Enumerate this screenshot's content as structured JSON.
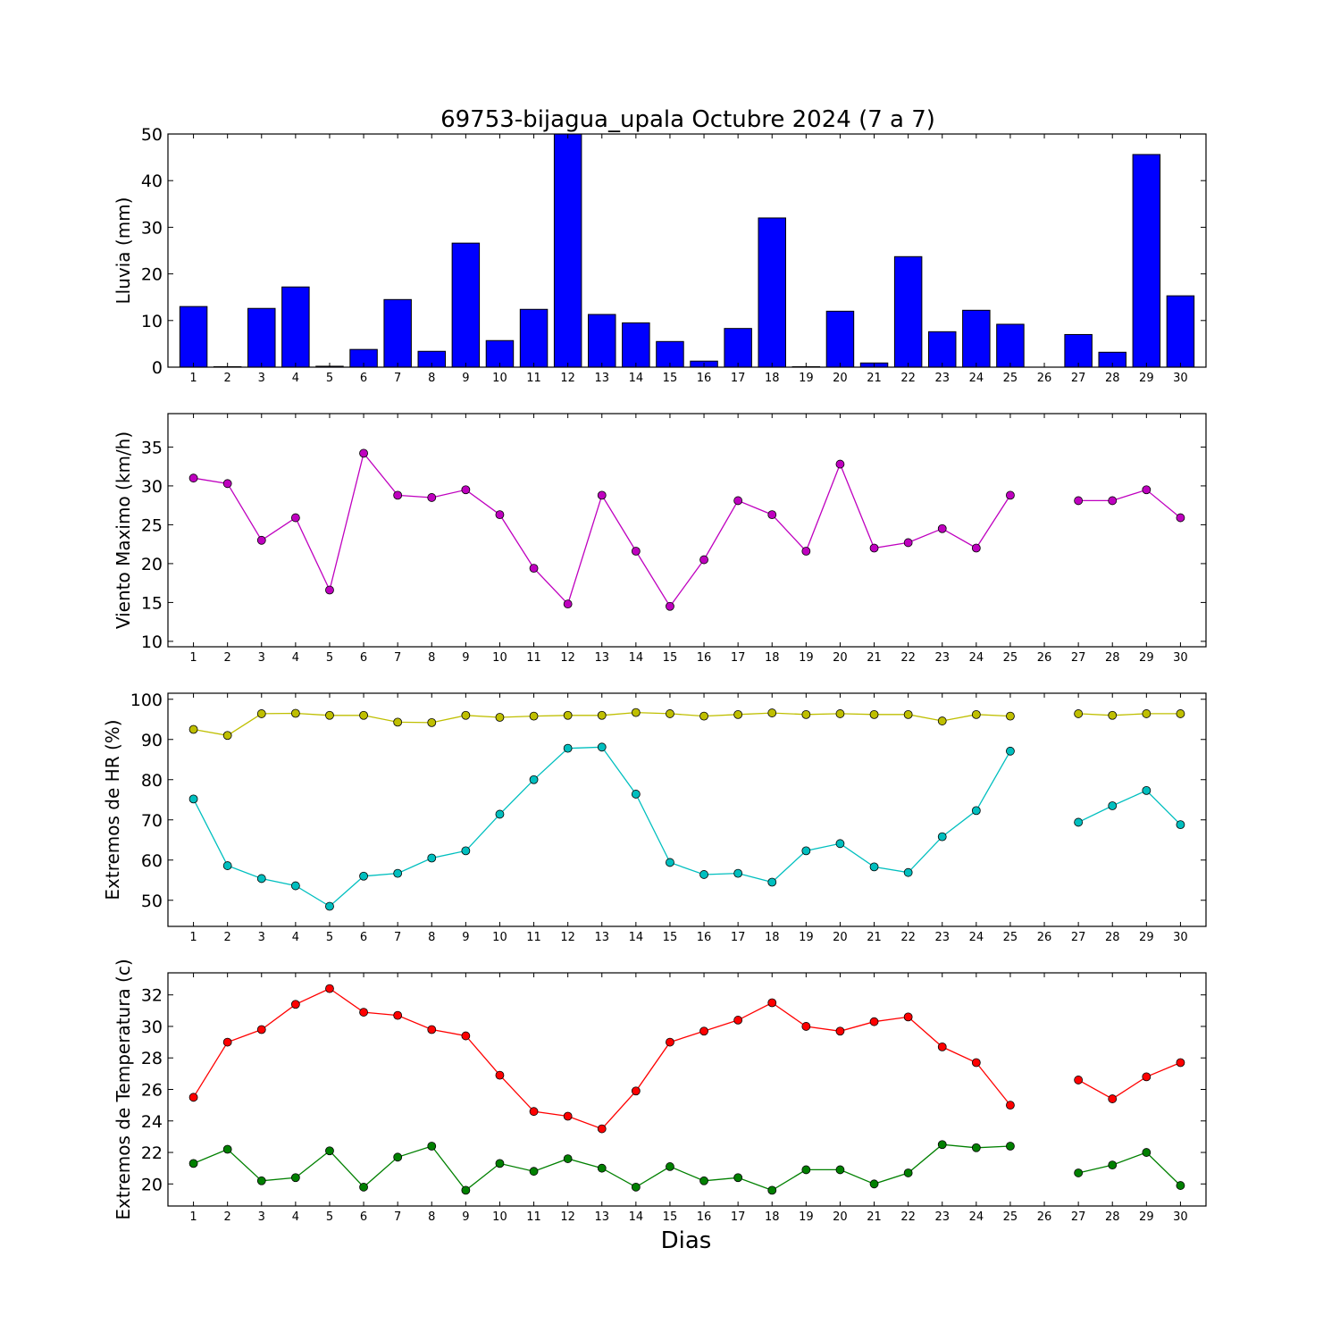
{
  "title": "69753-bijagua_upala Octubre 2024  (7 a 7)",
  "xlabel": "Dias",
  "days": [
    1,
    2,
    3,
    4,
    5,
    6,
    7,
    8,
    9,
    10,
    11,
    12,
    13,
    14,
    15,
    16,
    17,
    18,
    19,
    20,
    21,
    22,
    23,
    24,
    25,
    26,
    27,
    28,
    29,
    30
  ],
  "chart_data": [
    {
      "type": "bar",
      "ylabel": "Lluvia (mm)",
      "ylim": [
        0,
        50
      ],
      "yticks": [
        0,
        10,
        20,
        30,
        40,
        50
      ],
      "series": [
        {
          "color": "#0000ff",
          "values": [
            13.0,
            0.1,
            12.6,
            17.2,
            0.2,
            3.8,
            14.5,
            3.4,
            26.6,
            5.7,
            12.4,
            50,
            11.3,
            9.5,
            5.5,
            1.3,
            8.3,
            32.0,
            0.1,
            12.0,
            0.9,
            23.7,
            7.6,
            12.2,
            9.2,
            0,
            7.0,
            3.2,
            45.6,
            15.3
          ]
        }
      ]
    },
    {
      "type": "line",
      "ylabel": "Viento Maximo (km/h)",
      "ylim": [
        9.3,
        39.3
      ],
      "yticks": [
        10,
        15,
        20,
        25,
        30,
        35
      ],
      "series": [
        {
          "color": "#bf00bf",
          "values": [
            31.0,
            30.3,
            23.0,
            25.9,
            16.6,
            34.2,
            28.8,
            28.5,
            29.5,
            26.3,
            19.4,
            14.8,
            28.8,
            21.6,
            14.5,
            20.5,
            28.1,
            26.3,
            21.6,
            32.8,
            22.0,
            22.7,
            24.5,
            22.0,
            28.8,
            null,
            28.1,
            28.1,
            29.5,
            25.9
          ]
        }
      ]
    },
    {
      "type": "line",
      "ylabel": "Extremos de HR (%)",
      "ylim": [
        43.5,
        101.5
      ],
      "yticks": [
        50,
        60,
        70,
        80,
        90,
        100
      ],
      "series": [
        {
          "color": "#bfbf00",
          "values": [
            92.5,
            91.0,
            96.4,
            96.5,
            96.0,
            96.0,
            94.3,
            94.2,
            96.0,
            95.5,
            95.8,
            96.0,
            96.0,
            96.7,
            96.4,
            95.8,
            96.2,
            96.6,
            96.2,
            96.4,
            96.2,
            96.2,
            94.6,
            96.2,
            95.8,
            null,
            96.4,
            96.0,
            96.4,
            96.4
          ]
        },
        {
          "color": "#00bfbf",
          "values": [
            75.2,
            58.6,
            55.4,
            53.6,
            48.5,
            56.0,
            56.7,
            60.5,
            62.3,
            71.4,
            80.0,
            87.8,
            88.1,
            76.4,
            59.4,
            56.4,
            56.7,
            54.5,
            62.3,
            64.1,
            58.3,
            56.9,
            65.8,
            72.3,
            87.1,
            null,
            69.4,
            73.5,
            77.3,
            68.8
          ]
        }
      ]
    },
    {
      "type": "line",
      "ylabel": "Extremos de Temperatura (c)",
      "ylim": [
        18.6,
        33.4
      ],
      "yticks": [
        20,
        22,
        24,
        26,
        28,
        30,
        32
      ],
      "series": [
        {
          "color": "#ff0000",
          "values": [
            25.5,
            29.0,
            29.8,
            31.4,
            32.4,
            30.9,
            30.7,
            29.8,
            29.4,
            26.9,
            24.6,
            24.3,
            23.5,
            25.9,
            29.0,
            29.7,
            30.4,
            31.5,
            30.0,
            29.7,
            30.3,
            30.6,
            28.7,
            27.7,
            25.0,
            null,
            26.6,
            25.4,
            26.8,
            27.7
          ]
        },
        {
          "color": "#008000",
          "values": [
            21.3,
            22.2,
            20.2,
            20.4,
            22.1,
            19.8,
            21.7,
            22.4,
            19.6,
            21.3,
            20.8,
            21.6,
            21.0,
            19.8,
            21.1,
            20.2,
            20.4,
            19.6,
            20.9,
            20.9,
            20.0,
            20.7,
            22.5,
            22.3,
            22.4,
            null,
            20.7,
            21.2,
            22.0,
            19.9
          ]
        }
      ]
    }
  ]
}
